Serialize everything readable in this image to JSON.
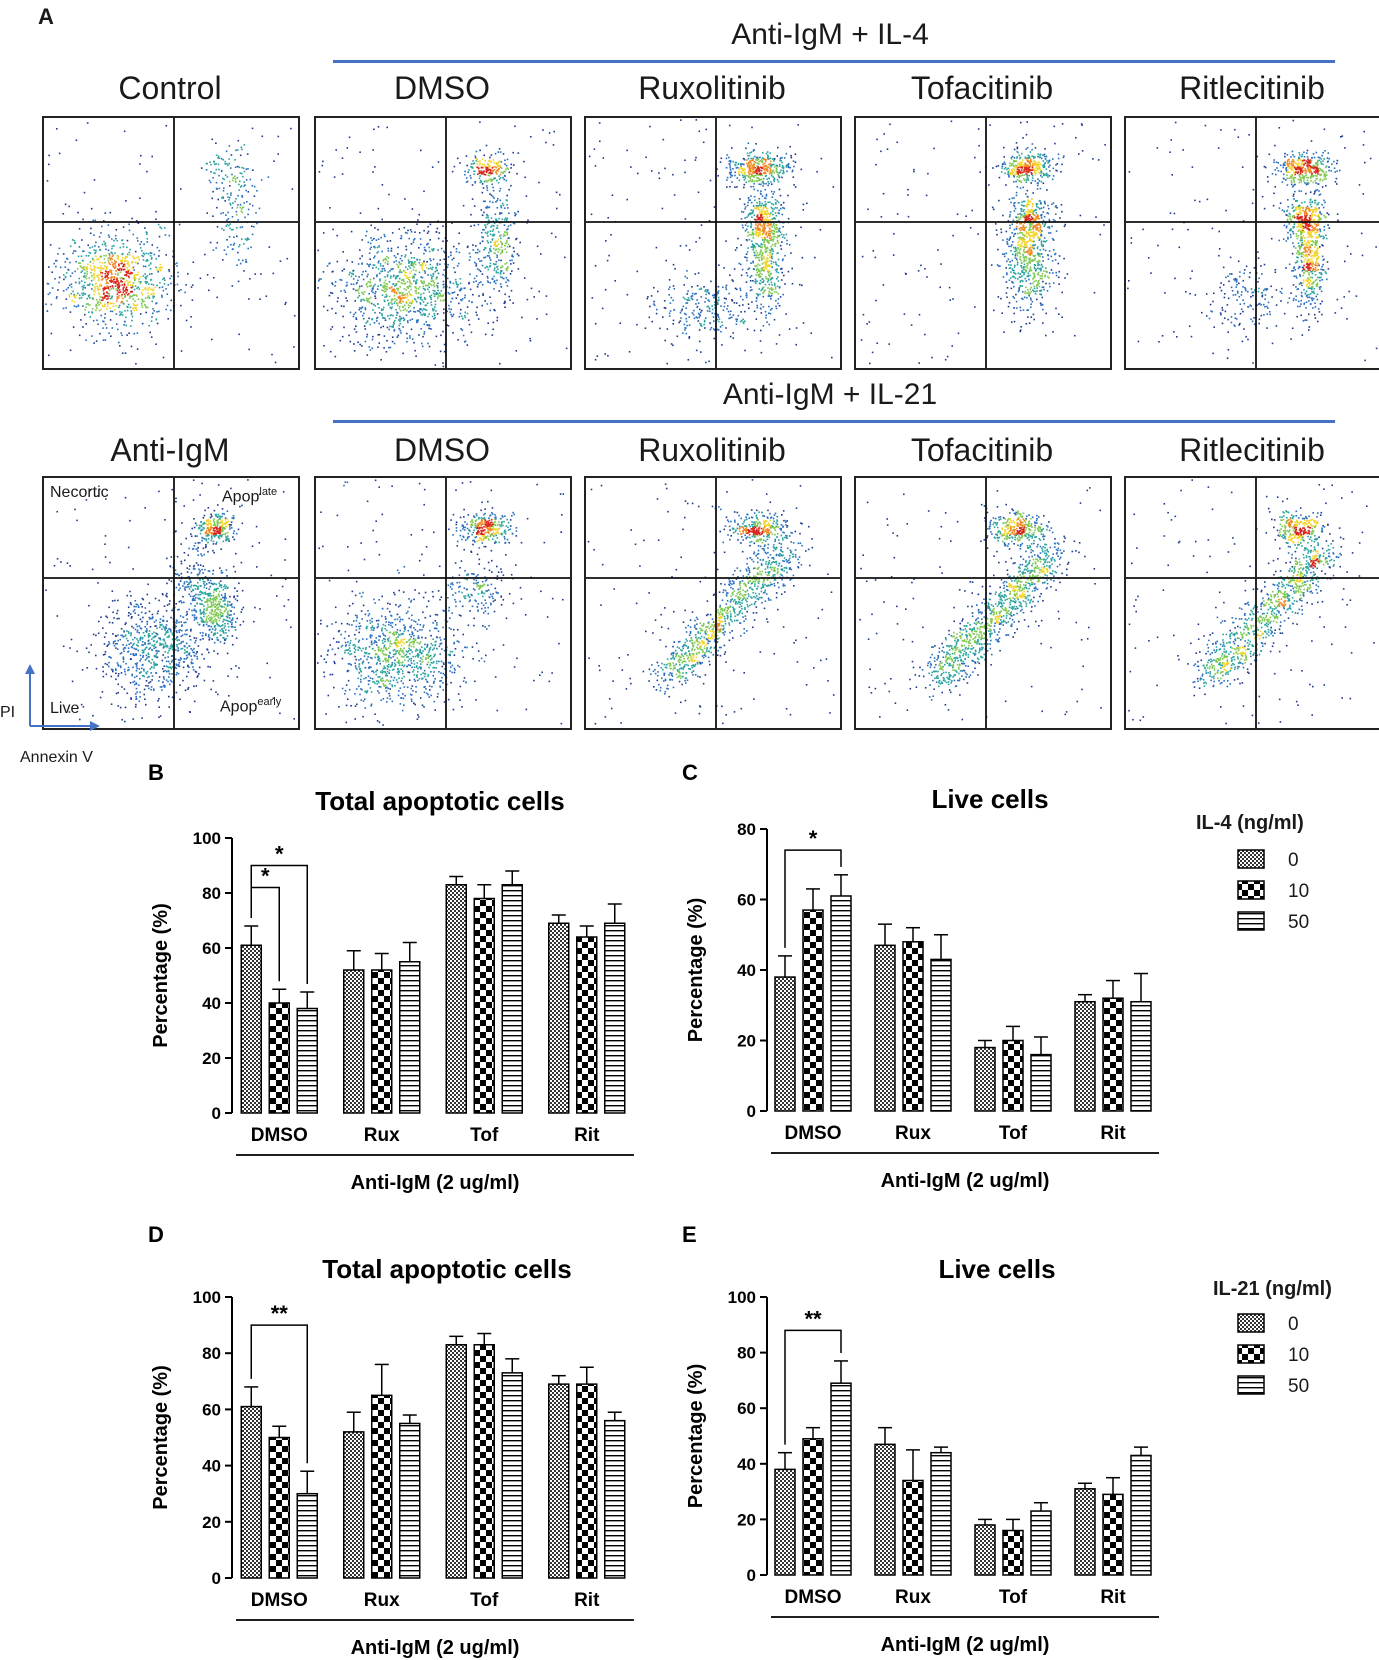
{
  "panel_a": {
    "letter": "A",
    "top_group_label": "Anti-IgM + IL-4",
    "bottom_group_label": "Anti-IgM + IL-21",
    "top_row_titles": [
      "Control",
      "DMSO",
      "Ruxolitinib",
      "Tofacitinib",
      "Ritlecitinib"
    ],
    "bottom_row_titles": [
      "Anti-IgM",
      "DMSO",
      "Ruxolitinib",
      "Tofacitinib",
      "Ritlecitinib"
    ],
    "quadrant_labels": {
      "necrotic": "Necortic",
      "apop_late": "Apop",
      "apop_late_sup": "late",
      "live": "Live",
      "apop_early": "Apop",
      "apop_early_sup": "early"
    },
    "y_axis_label": "PI",
    "x_axis_label": "Annexin V",
    "accent_color": "#4472c4"
  },
  "legend_il4": {
    "title": "IL-4 (ng/ml)",
    "items": [
      "0",
      "10",
      "50"
    ]
  },
  "legend_il21": {
    "title": "IL-21 (ng/ml)",
    "items": [
      "0",
      "10",
      "50"
    ]
  },
  "chart_data": [
    {
      "id": "B",
      "letter": "B",
      "type": "bar",
      "title": "Total apoptotic cells",
      "xlabel": "Anti-IgM (2 ug/ml)",
      "ylabel": "Percentage (%)",
      "ylim": [
        0,
        100
      ],
      "yticks": [
        0,
        20,
        40,
        60,
        80,
        100
      ],
      "categories": [
        "DMSO",
        "Rux",
        "Tof",
        "Rit"
      ],
      "series": [
        {
          "name": "0",
          "pattern": "checker-fine",
          "values": [
            61,
            52,
            83,
            69
          ],
          "errors": [
            7,
            7,
            3,
            3
          ]
        },
        {
          "name": "10",
          "pattern": "checker-coarse",
          "values": [
            40,
            52,
            78,
            64
          ],
          "errors": [
            5,
            6,
            5,
            4
          ]
        },
        {
          "name": "50",
          "pattern": "hlines",
          "values": [
            38,
            55,
            83,
            69
          ],
          "errors": [
            6,
            7,
            5,
            7
          ]
        }
      ],
      "significance": [
        {
          "from": [
            0,
            0
          ],
          "to": [
            0,
            1
          ],
          "label": "*",
          "y": 82
        },
        {
          "from": [
            0,
            0
          ],
          "to": [
            0,
            2
          ],
          "label": "*",
          "y": 90
        }
      ]
    },
    {
      "id": "C",
      "letter": "C",
      "type": "bar",
      "title": "Live cells",
      "xlabel": "Anti-IgM (2 ug/ml)",
      "ylabel": "Percentage (%)",
      "ylim": [
        0,
        80
      ],
      "yticks": [
        0,
        20,
        40,
        60,
        80
      ],
      "categories": [
        "DMSO",
        "Rux",
        "Tof",
        "Rit"
      ],
      "series": [
        {
          "name": "0",
          "pattern": "checker-fine",
          "values": [
            38,
            47,
            18,
            31
          ],
          "errors": [
            6,
            6,
            2,
            2
          ]
        },
        {
          "name": "10",
          "pattern": "checker-coarse",
          "values": [
            57,
            48,
            20,
            32
          ],
          "errors": [
            6,
            4,
            4,
            5
          ]
        },
        {
          "name": "50",
          "pattern": "hlines",
          "values": [
            61,
            43,
            16,
            31
          ],
          "errors": [
            6,
            7,
            5,
            8
          ]
        }
      ],
      "significance": [
        {
          "from": [
            0,
            0
          ],
          "to": [
            0,
            2
          ],
          "label": "*",
          "y": 74
        }
      ]
    },
    {
      "id": "D",
      "letter": "D",
      "type": "bar",
      "title": "Total apoptotic cells",
      "xlabel": "Anti-IgM (2 ug/ml)",
      "ylabel": "Percentage (%)",
      "ylim": [
        0,
        100
      ],
      "yticks": [
        0,
        20,
        40,
        60,
        80,
        100
      ],
      "categories": [
        "DMSO",
        "Rux",
        "Tof",
        "Rit"
      ],
      "series": [
        {
          "name": "0",
          "pattern": "checker-fine",
          "values": [
            61,
            52,
            83,
            69
          ],
          "errors": [
            7,
            7,
            3,
            3
          ]
        },
        {
          "name": "10",
          "pattern": "checker-coarse",
          "values": [
            50,
            65,
            83,
            69
          ],
          "errors": [
            4,
            11,
            4,
            6
          ]
        },
        {
          "name": "50",
          "pattern": "hlines",
          "values": [
            30,
            55,
            73,
            56
          ],
          "errors": [
            8,
            3,
            5,
            3
          ]
        }
      ],
      "significance": [
        {
          "from": [
            0,
            0
          ],
          "to": [
            0,
            2
          ],
          "label": "**",
          "y": 90
        }
      ]
    },
    {
      "id": "E",
      "letter": "E",
      "type": "bar",
      "title": "Live cells",
      "xlabel": "Anti-IgM (2 ug/ml)",
      "ylabel": "Percentage (%)",
      "ylim": [
        0,
        100
      ],
      "yticks": [
        0,
        20,
        40,
        60,
        80,
        100
      ],
      "categories": [
        "DMSO",
        "Rux",
        "Tof",
        "Rit"
      ],
      "series": [
        {
          "name": "0",
          "pattern": "checker-fine",
          "values": [
            38,
            47,
            18,
            31
          ],
          "errors": [
            6,
            6,
            2,
            2
          ]
        },
        {
          "name": "10",
          "pattern": "checker-coarse",
          "values": [
            49,
            34,
            16,
            29
          ],
          "errors": [
            4,
            11,
            4,
            6
          ]
        },
        {
          "name": "50",
          "pattern": "hlines",
          "values": [
            69,
            44,
            23,
            43
          ],
          "errors": [
            8,
            2,
            3,
            3
          ]
        }
      ],
      "significance": [
        {
          "from": [
            0,
            0
          ],
          "to": [
            0,
            2
          ],
          "label": "**",
          "y": 88
        }
      ]
    }
  ]
}
